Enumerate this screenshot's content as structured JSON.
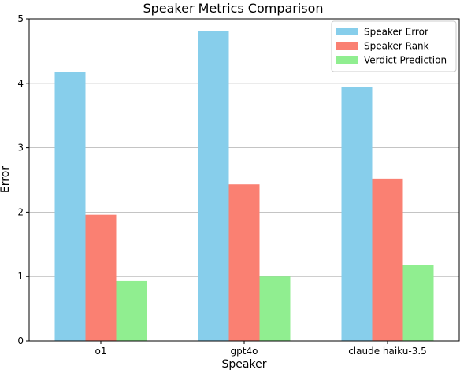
{
  "chart_data": {
    "type": "bar",
    "title": "Speaker Metrics Comparison",
    "xlabel": "Speaker",
    "ylabel": "Error",
    "categories": [
      "o1",
      "gpt4o",
      "claude haiku-3.5"
    ],
    "series": [
      {
        "name": "Speaker Error",
        "values": [
          4.18,
          4.81,
          3.94
        ],
        "color": "#87ceeb"
      },
      {
        "name": "Speaker Rank",
        "values": [
          1.96,
          2.43,
          2.52
        ],
        "color": "#fa8072"
      },
      {
        "name": "Verdict Prediction",
        "values": [
          0.93,
          1.0,
          1.18
        ],
        "color": "#90ee90"
      }
    ],
    "ylim": [
      0,
      5
    ],
    "yticks": [
      "0",
      "1",
      "2",
      "3",
      "4",
      "5"
    ],
    "grid": "y",
    "legend": "top-right"
  }
}
